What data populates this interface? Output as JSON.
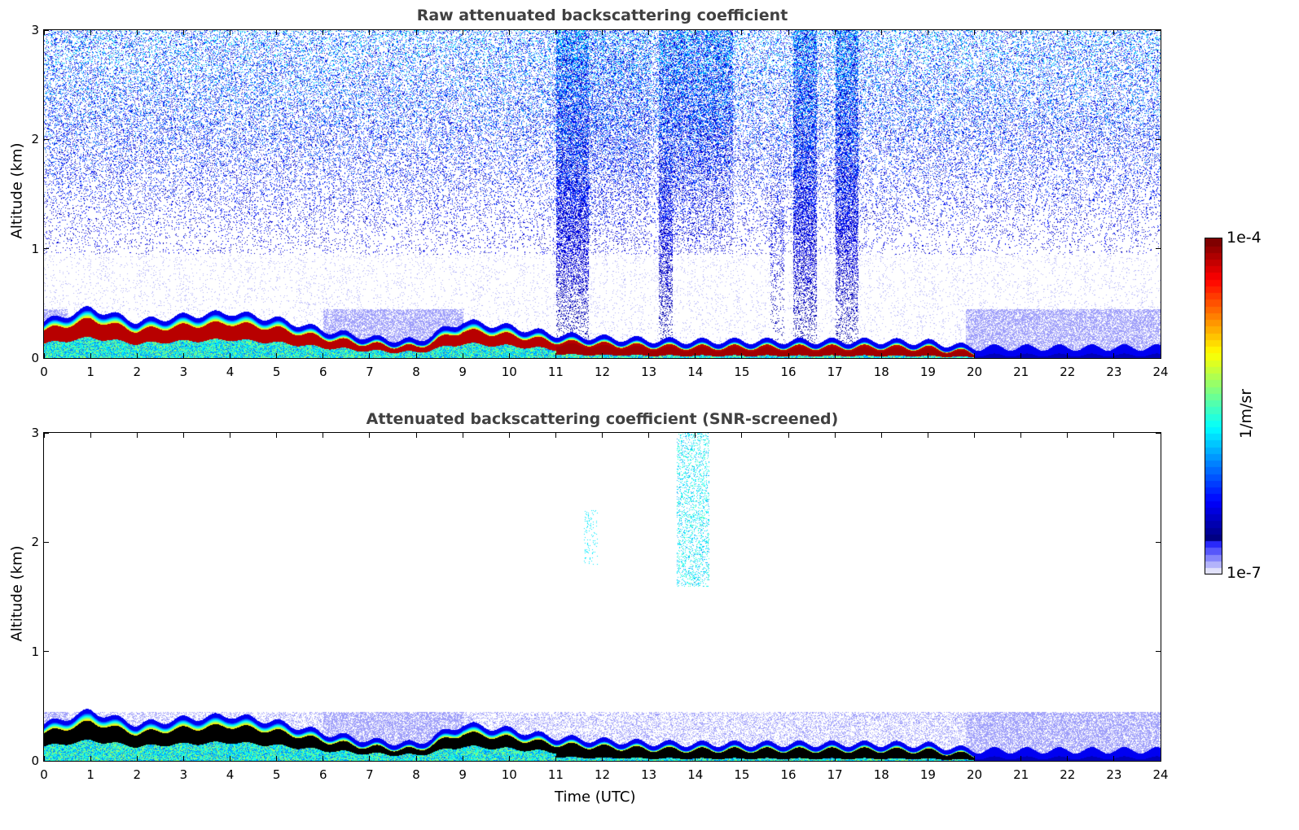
{
  "chart_data": [
    {
      "type": "heatmap",
      "title": "Raw attenuated backscattering coefficient",
      "xlabel": "",
      "ylabel": "Altitude (km)",
      "xlim": [
        0,
        24
      ],
      "ylim": [
        0,
        3
      ],
      "xticks": [
        "0",
        "1",
        "2",
        "3",
        "4",
        "5",
        "6",
        "7",
        "8",
        "9",
        "10",
        "11",
        "12",
        "13",
        "14",
        "15",
        "16",
        "17",
        "18",
        "19",
        "20",
        "21",
        "22",
        "23",
        "24"
      ],
      "yticks": [
        "0",
        "1",
        "2",
        "3"
      ],
      "screened": false
    },
    {
      "type": "heatmap",
      "title": "Attenuated backscattering coefficient (SNR-screened)",
      "xlabel": "Time (UTC)",
      "ylabel": "Altitude (km)",
      "xlim": [
        0,
        24
      ],
      "ylim": [
        0,
        3
      ],
      "xticks": [
        "0",
        "1",
        "2",
        "3",
        "4",
        "5",
        "6",
        "7",
        "8",
        "9",
        "10",
        "11",
        "12",
        "13",
        "14",
        "15",
        "16",
        "17",
        "18",
        "19",
        "20",
        "21",
        "22",
        "23",
        "24"
      ],
      "yticks": [
        "0",
        "1",
        "2",
        "3"
      ],
      "screened": true
    }
  ],
  "layer_top_km_hourly": [
    0.3,
    0.42,
    0.3,
    0.35,
    0.38,
    0.32,
    0.22,
    0.15,
    0.12,
    0.3,
    0.25,
    0.18,
    0.15,
    0.13,
    0.12,
    0.12,
    0.12,
    0.12,
    0.12,
    0.11,
    0.06,
    0.06,
    0.06,
    0.06,
    0.06
  ],
  "colorbar": {
    "label": "1/m/sr",
    "min_label": "1e-7",
    "max_label": "1e-4",
    "scale": "log",
    "range": [
      1e-07,
      0.0001
    ]
  }
}
